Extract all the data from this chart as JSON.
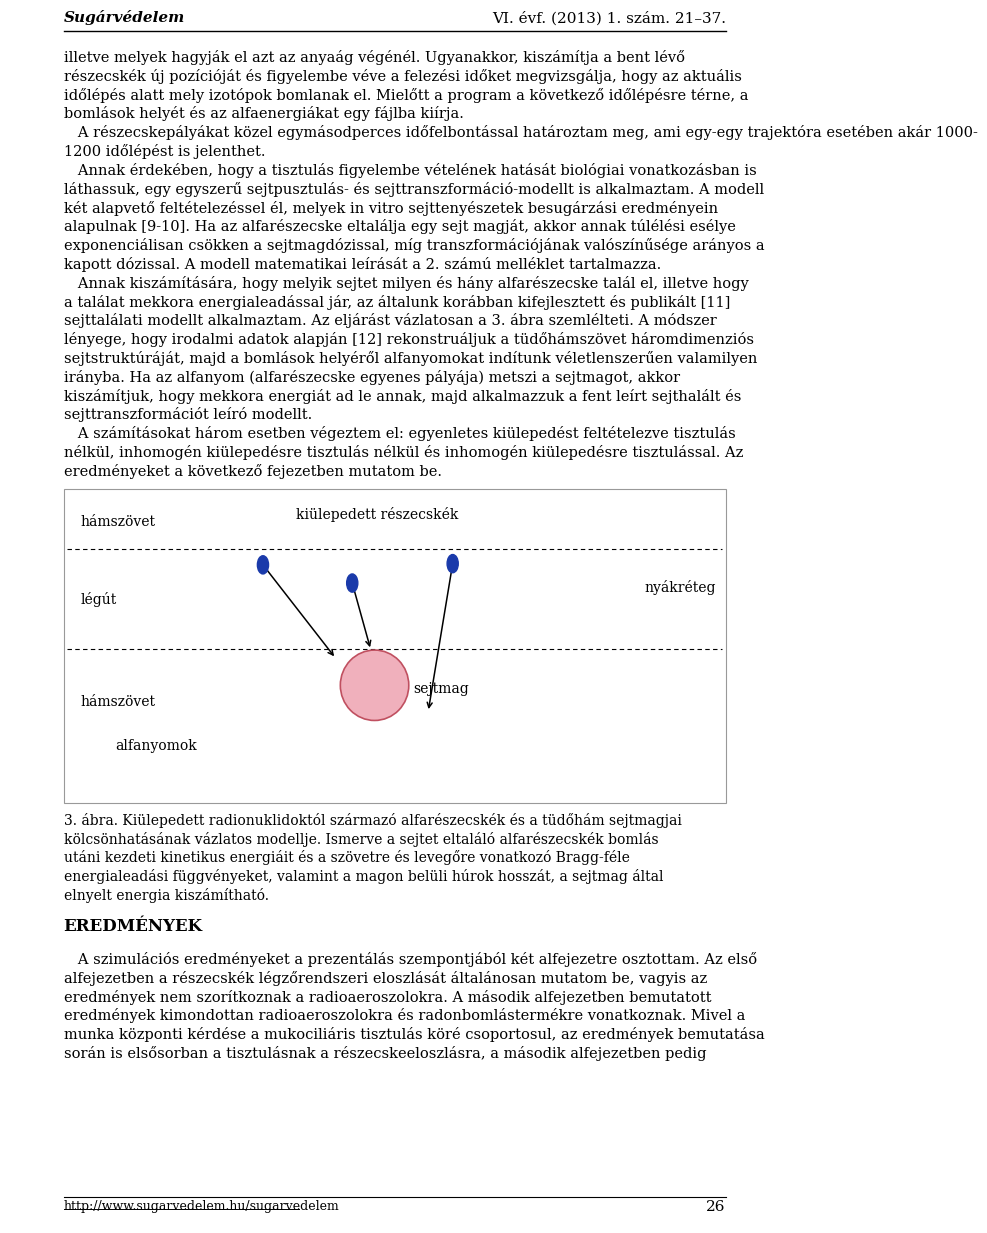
{
  "header_left": "Sugárvédelem",
  "header_right": "VI. évf. (2013) 1. szám. 21–37.",
  "footer_url": "http://www.sugarvedelem.hu/sugarvedelem",
  "footer_page": "26",
  "bg_color": "#ffffff",
  "text_color": "#000000",
  "paragraphs": [
    "illetve melyek hagyják el azt az anyaág végénél. Ugyanakkor, kiszámítja a bent lévő",
    "részecskék új pozícióját és figyelembe véve a felezési időket megvizsgálja, hogy az aktuális",
    "időlépés alatt mely izotópok bomlanak el. Mielőtt a program a következő időlépésre térne, a",
    "bomlások helyét és az alfaenergiákat egy fájlba kiírja.",
    "   A részecskepályákat közel egymásodperces időfelbontással határoztam meg, ami egy-egy trajektóra esetében akár 1000-",
    "1200 időlépést is jelenthet.",
    "   Annak érdekében, hogy a tisztulás figyelembe vételének hatását biológiai vonatkozásban is",
    "láthassuk, egy egyszerű sejtpusztulás- és sejttranszformáció-modellt is alkalmaztam. A modell",
    "két alapvető feltételezéssel él, melyek in vitro sejttenyészetek besugárzási eredményein",
    "alapulnak [9-10]. Ha az alfarészecske eltalálja egy sejt magját, akkor annak túlélési esélye",
    "exponenciálisan csökken a sejtmagdózissal, míg transzformációjának valószínűsége arányos a",
    "kapott dózissal. A modell matematikai leírását a 2. számú melléklet tartalmazza.",
    "   Annak kiszámítására, hogy melyik sejtet milyen és hány alfarészecske talál el, illetve hogy",
    "a találat mekkora energialeadással jár, az általunk korábban kifejlesztett és publikált [11]",
    "sejttalálati modellt alkalmaztam. Az eljárást vázlatosan a 3. ábra szemlélteti. A módszer",
    "lényege, hogy irodalmi adatok alapján [12] rekonstruáljuk a tüdőhámszövet háromdimenziós",
    "sejtstruktúráját, majd a bomlások helyéről alfanyomokat indítunk véletlenszerűen valamilyen",
    "irányba. Ha az alfanyom (alfarészecske egyenes pályája) metszi a sejtmagot, akkor",
    "kiszámítjuk, hogy mekkora energiát ad le annak, majd alkalmazzuk a fent leírt sejthalált és",
    "sejttranszformációt leíró modellt.",
    "   A számításokat három esetben végeztem el: egyenletes kiülepedést feltételezve tisztulás",
    "nélkül, inhomogén kiülepedésre tisztulás nélkül és inhomogén kiülepedésre tisztulással. Az",
    "eredményeket a következő fejezetben mutatom be."
  ],
  "diagram_labels": {
    "hamszov_top": "hámszövet",
    "kiulepedett": "kiülepedett részecskék",
    "legut": "légút",
    "nyakretek": "nyákréteg",
    "hamszov_bottom": "hámszövet",
    "alfanyomok": "alfanyomok",
    "sejtmag": "sejtmag"
  },
  "caption_3abra": "3. ábra. Kiülepedett radionuklidoktól származó alfarészecskék és a tüdőhám sejtmagjai",
  "caption_line2": "kölcsönhatásának vázlatos modellje. Ismerve a sejtet eltaláló alfarészecskék bomlás",
  "caption_line3": "utáni kezdeti kinetikus energiáit és a szövetre és levegőre vonatkozó Bragg-féle",
  "caption_line4": "energialeadási függvényeket, valamint a magon belüli húrok hosszát, a sejtmag által",
  "caption_line5": "elnyelt energia kiszámítható.",
  "eredmenyek_title": "EREDMÉNYEK",
  "eredmenyek_paragraphs": [
    "   A szimulációs eredményeket a prezentálás szempontjából két alfejezetre osztottam. Az első",
    "alfejezetben a részecskék légzőrendszeri eloszlását általánosan mutatom be, vagyis az",
    "eredmények nem szorítkoznak a radioaeroszolokra. A második alfejezetben bemutatott",
    "eredmények kimondottan radioaeroszolokra és radonbomlástermékre vonatkoznak. Mivel a",
    "munka központi kérdése a mukociliáris tisztulás köré csoportosul, az eredmények bemutatása",
    "során is elsősorban a tisztulásnak a részecskeeloszlásra, a második alfejezetben pedig"
  ]
}
